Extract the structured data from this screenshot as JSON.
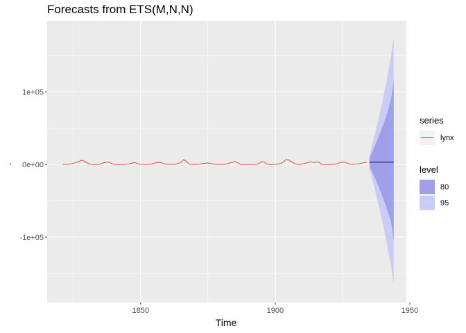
{
  "chart_data": {
    "type": "line",
    "title": "Forecasts from ETS(M,N,N)",
    "xlabel": "Time",
    "ylabel": ".",
    "xlim": [
      1815.3,
      1948.7
    ],
    "ylim": [
      -190000,
      198000
    ],
    "x_ticks": [
      1850,
      1900,
      1950
    ],
    "x_tick_labels": [
      "1850",
      "1900",
      "1950"
    ],
    "y_ticks": [
      -100000,
      0,
      100000
    ],
    "y_tick_labels": [
      "-1e+05",
      "0e+00",
      "1e+05"
    ],
    "grid": true,
    "legend_position": "right",
    "colors": {
      "panel": "#ebebeb",
      "grid": "#ffffff",
      "series_line": "#e0584e",
      "forecast_line": "#1a1a8a",
      "level80": "#a0a0ea",
      "level95": "#cbcbf7"
    },
    "series": [
      {
        "name": "lynx",
        "x": [
          1821,
          1822,
          1823,
          1824,
          1825,
          1826,
          1827,
          1828,
          1829,
          1830,
          1831,
          1832,
          1833,
          1834,
          1835,
          1836,
          1837,
          1838,
          1839,
          1840,
          1841,
          1842,
          1843,
          1844,
          1845,
          1846,
          1847,
          1848,
          1849,
          1850,
          1851,
          1852,
          1853,
          1854,
          1855,
          1856,
          1857,
          1858,
          1859,
          1860,
          1861,
          1862,
          1863,
          1864,
          1865,
          1866,
          1867,
          1868,
          1869,
          1870,
          1871,
          1872,
          1873,
          1874,
          1875,
          1876,
          1877,
          1878,
          1879,
          1880,
          1881,
          1882,
          1883,
          1884,
          1885,
          1886,
          1887,
          1888,
          1889,
          1890,
          1891,
          1892,
          1893,
          1894,
          1895,
          1896,
          1897,
          1898,
          1899,
          1900,
          1901,
          1902,
          1903,
          1904,
          1905,
          1906,
          1907,
          1908,
          1909,
          1910,
          1911,
          1912,
          1913,
          1914,
          1915,
          1916,
          1917,
          1918,
          1919,
          1920,
          1921,
          1922,
          1923,
          1924,
          1925,
          1926,
          1927,
          1928,
          1929,
          1930,
          1931,
          1932,
          1933,
          1934
        ],
        "values": [
          269,
          321,
          585,
          871,
          1475,
          2821,
          3928,
          5943,
          4950,
          2577,
          523,
          98,
          184,
          279,
          409,
          2285,
          2685,
          3409,
          1824,
          409,
          151,
          45,
          68,
          213,
          546,
          1033,
          2129,
          2536,
          957,
          361,
          377,
          225,
          360,
          731,
          1638,
          2725,
          2871,
          2119,
          684,
          299,
          236,
          245,
          552,
          1623,
          3311,
          6721,
          4254,
          687,
          255,
          473,
          358,
          784,
          1594,
          1676,
          2251,
          1426,
          756,
          299,
          201,
          229,
          469,
          736,
          2042,
          2811,
          4431,
          2511,
          389,
          73,
          39,
          49,
          59,
          188,
          377,
          1292,
          4031,
          3495,
          587,
          105,
          153,
          387,
          758,
          1307,
          3465,
          6991,
          6313,
          3794,
          1836,
          345,
          382,
          808,
          1388,
          2713,
          3800,
          3091,
          2985,
          3790,
          674,
          81,
          80,
          108,
          229,
          399,
          1132,
          2432,
          3574,
          2935,
          1537,
          529,
          485,
          662,
          1000,
          1590,
          2657,
          3396
        ]
      }
    ],
    "forecast": {
      "x": [
        1935,
        1936,
        1937,
        1938,
        1939,
        1940,
        1941,
        1942,
        1943,
        1944
      ],
      "point": [
        3421,
        3421,
        3421,
        3421,
        3421,
        3421,
        3421,
        3421,
        3421,
        3421
      ],
      "lo80": [
        -2200,
        -10000,
        -18000,
        -27000,
        -36000,
        -46000,
        -56000,
        -67000,
        -79000,
        -105000
      ],
      "hi80": [
        9000,
        17000,
        26000,
        35000,
        44000,
        54000,
        64000,
        76000,
        90000,
        115000
      ],
      "lo95": [
        -5500,
        -20000,
        -35000,
        -50000,
        -66000,
        -82000,
        -100000,
        -120000,
        -140000,
        -165000
      ],
      "hi95": [
        12500,
        27000,
        42000,
        57000,
        73000,
        90000,
        108000,
        128000,
        150000,
        175000
      ]
    },
    "legends": [
      {
        "title": "series",
        "items": [
          {
            "label": "lynx",
            "kind": "line",
            "color": "#e0584e"
          }
        ]
      },
      {
        "title": "level",
        "items": [
          {
            "label": "80",
            "kind": "fill",
            "color": "#a0a0ea"
          },
          {
            "label": "95",
            "kind": "fill",
            "color": "#cbcbf7"
          }
        ]
      }
    ]
  }
}
